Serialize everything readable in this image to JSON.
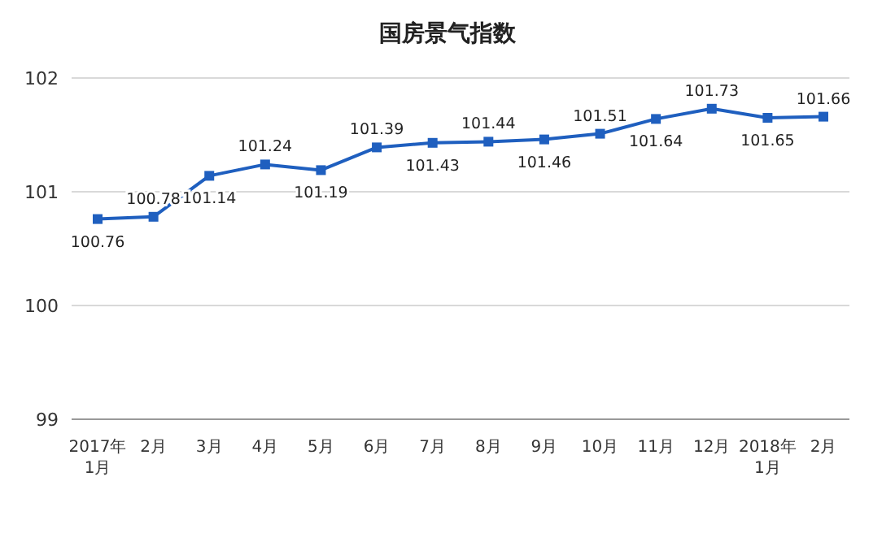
{
  "chart_data": {
    "type": "line",
    "title": "国房景气指数",
    "categories": [
      "2017年\n1月",
      "2月",
      "3月",
      "4月",
      "5月",
      "6月",
      "7月",
      "8月",
      "9月",
      "10月",
      "11月",
      "12月",
      "2018年\n1月",
      "2月"
    ],
    "series": [
      {
        "color": "#1f5fbf",
        "values": [
          100.76,
          100.78,
          101.14,
          101.24,
          101.19,
          101.39,
          101.43,
          101.44,
          101.46,
          101.51,
          101.64,
          101.73,
          101.65,
          101.66
        ]
      }
    ],
    "ylim": [
      99,
      102
    ],
    "yticks": [
      99,
      100,
      101,
      102
    ],
    "grid": "y",
    "legend": false,
    "marker": "square",
    "line_style": "solid",
    "data_labels": true
  }
}
